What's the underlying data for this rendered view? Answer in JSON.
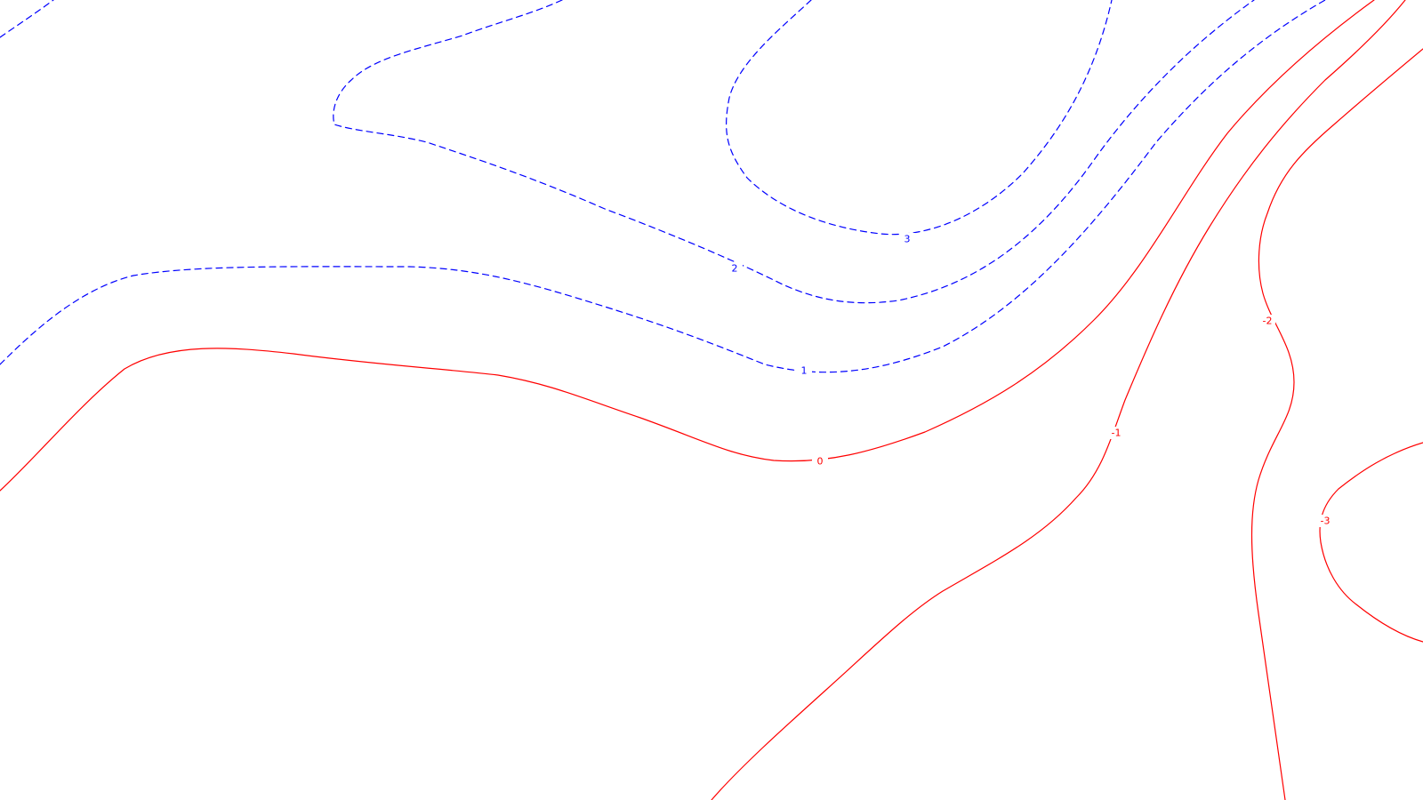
{
  "chart_data": {
    "type": "contour",
    "title": "",
    "xlabel": "",
    "ylabel": "",
    "colors": {
      "positive": "#0000ff",
      "negative": "#ff0000",
      "background": "#ffffff"
    },
    "levels": [
      {
        "level": 3,
        "label": "3",
        "sign": "positive"
      },
      {
        "level": 2,
        "label": "2",
        "sign": "positive"
      },
      {
        "level": 1,
        "label": "1",
        "sign": "positive"
      },
      {
        "level": 0,
        "label": "0",
        "sign": "negative"
      },
      {
        "level": -1,
        "label": "-1",
        "sign": "negative"
      },
      {
        "level": -2,
        "label": "-2",
        "sign": "negative"
      },
      {
        "level": -3,
        "label": "-3",
        "sign": "negative"
      }
    ]
  }
}
